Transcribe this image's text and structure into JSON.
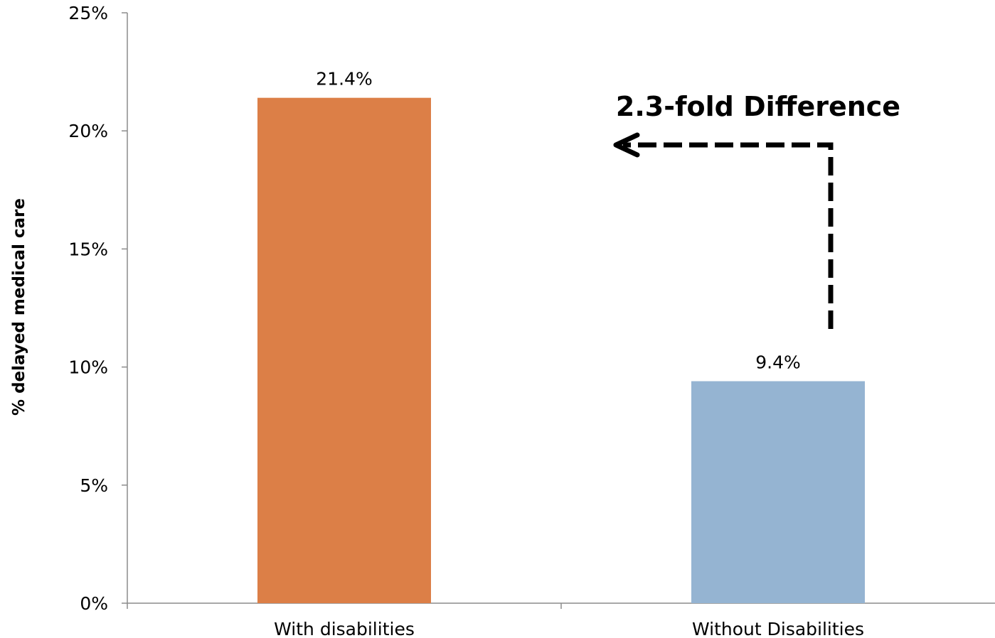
{
  "chart_data": {
    "type": "bar",
    "categories": [
      "With disabilities",
      "Without Disabilities"
    ],
    "values": [
      21.4,
      9.4
    ],
    "data_labels": [
      "21.4%",
      "9.4%"
    ],
    "colors": [
      "#dc7f47",
      "#95b4d2"
    ],
    "ylabel": "% delayed medical care",
    "ylim": [
      0,
      25
    ],
    "yticks": [
      0,
      5,
      10,
      15,
      20,
      25
    ],
    "ytick_labels": [
      "0%",
      "5%",
      "10%",
      "15%",
      "20%",
      "25%"
    ],
    "grid": false,
    "legend": "none",
    "annotation": "2.3-fold Difference"
  }
}
